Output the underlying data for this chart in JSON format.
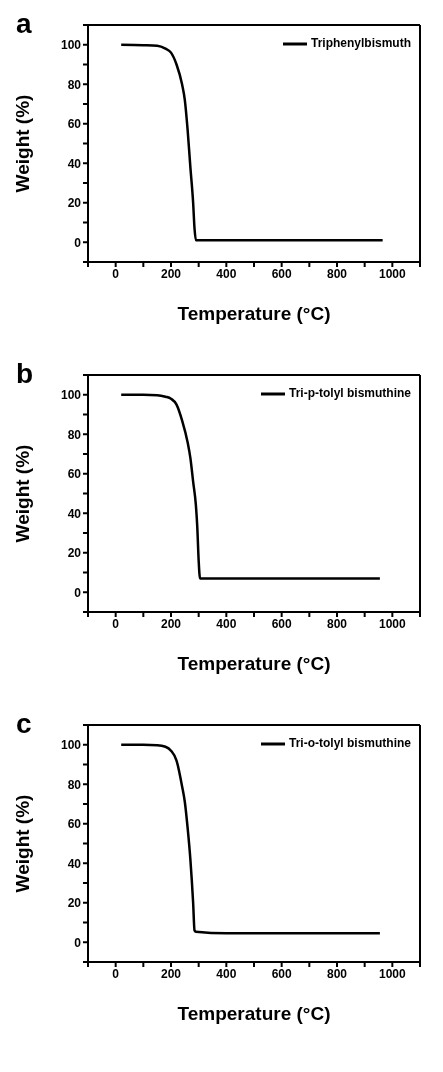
{
  "chart_data": [
    {
      "type": "line",
      "title": "a",
      "xlabel": "Temperature (°C)",
      "ylabel": "Weight (%)",
      "legend": "top right",
      "marker": "none",
      "line_style": "solid",
      "grid": false,
      "xlim": [
        -100,
        1100
      ],
      "ylim": [
        -10,
        110
      ],
      "xticks": [
        {
          "value": -100,
          "label": null
        },
        0,
        {
          "value": 100,
          "label": null
        },
        200,
        {
          "value": 300,
          "label": null
        },
        400,
        {
          "value": 500,
          "label": null
        },
        600,
        {
          "value": 700,
          "label": null
        },
        800,
        {
          "value": 900,
          "label": null
        },
        1000,
        {
          "value": 1100,
          "label": null
        }
      ],
      "yticks": [
        {
          "value": -10,
          "label": null
        },
        0,
        {
          "value": 10,
          "label": null
        },
        20,
        {
          "value": 30,
          "label": null
        },
        40,
        {
          "value": 50,
          "label": null
        },
        60,
        {
          "value": 70,
          "label": null
        },
        80,
        {
          "value": 90,
          "label": null
        },
        100,
        {
          "value": 110,
          "label": null
        }
      ],
      "series": [
        {
          "name": "Triphenylbismuth",
          "color": "#000000",
          "x": [
            20,
            100,
            150,
            180,
            200,
            220,
            240,
            250,
            260,
            270,
            280,
            285,
            290,
            400,
            600,
            800,
            965
          ],
          "values": [
            100,
            99.8,
            99.5,
            98,
            96,
            90,
            80,
            72,
            57,
            38,
            20,
            7,
            1,
            1,
            1,
            1,
            1
          ]
        }
      ]
    },
    {
      "type": "line",
      "title": "b",
      "xlabel": "Temperature (°C)",
      "ylabel": "Weight (%)",
      "legend": "top right",
      "marker": "none",
      "line_style": "solid",
      "grid": false,
      "xlim": [
        -100,
        1100
      ],
      "ylim": [
        -10,
        110
      ],
      "xticks": [
        {
          "value": -100,
          "label": null
        },
        0,
        {
          "value": 100,
          "label": null
        },
        200,
        {
          "value": 300,
          "label": null
        },
        400,
        {
          "value": 500,
          "label": null
        },
        600,
        {
          "value": 700,
          "label": null
        },
        800,
        {
          "value": 900,
          "label": null
        },
        1000,
        {
          "value": 1100,
          "label": null
        }
      ],
      "yticks": [
        {
          "value": -10,
          "label": null
        },
        0,
        {
          "value": 10,
          "label": null
        },
        20,
        {
          "value": 30,
          "label": null
        },
        40,
        {
          "value": 50,
          "label": null
        },
        60,
        {
          "value": 70,
          "label": null
        },
        80,
        {
          "value": 90,
          "label": null
        },
        100,
        {
          "value": 110,
          "label": null
        }
      ],
      "series": [
        {
          "name": "Tri-p-tolyl bismuthine",
          "color": "#000000",
          "x": [
            20,
            100,
            150,
            180,
            200,
            220,
            240,
            260,
            270,
            280,
            290,
            295,
            300,
            305,
            400,
            600,
            800,
            955
          ],
          "values": [
            100,
            100,
            99.8,
            99,
            98,
            95,
            87,
            76,
            68,
            56,
            44,
            33,
            16,
            7,
            7,
            7,
            7,
            7
          ]
        }
      ]
    },
    {
      "type": "line",
      "title": "c",
      "xlabel": "Temperature (°C)",
      "ylabel": "Weight (%)",
      "legend": "top right",
      "marker": "none",
      "line_style": "solid",
      "grid": false,
      "xlim": [
        -100,
        1100
      ],
      "ylim": [
        -10,
        110
      ],
      "xticks": [
        {
          "value": -100,
          "label": null
        },
        0,
        {
          "value": 100,
          "label": null
        },
        200,
        {
          "value": 300,
          "label": null
        },
        400,
        {
          "value": 500,
          "label": null
        },
        600,
        {
          "value": 700,
          "label": null
        },
        800,
        {
          "value": 900,
          "label": null
        },
        1000,
        {
          "value": 1100,
          "label": null
        }
      ],
      "yticks": [
        {
          "value": -10,
          "label": null
        },
        0,
        {
          "value": 10,
          "label": null
        },
        20,
        {
          "value": 30,
          "label": null
        },
        40,
        {
          "value": 50,
          "label": null
        },
        60,
        {
          "value": 70,
          "label": null
        },
        80,
        {
          "value": 90,
          "label": null
        },
        100,
        {
          "value": 110,
          "label": null
        }
      ],
      "series": [
        {
          "name": "Tri-o-tolyl bismuthine",
          "color": "#000000",
          "x": [
            20,
            100,
            150,
            180,
            200,
            220,
            240,
            250,
            260,
            270,
            280,
            285,
            290,
            400,
            600,
            800,
            955
          ],
          "values": [
            100,
            100,
            99.8,
            99,
            97,
            92,
            79,
            71,
            58,
            42,
            20,
            6,
            5.3,
            4.5,
            4.5,
            4.5,
            4.5
          ]
        }
      ]
    }
  ]
}
